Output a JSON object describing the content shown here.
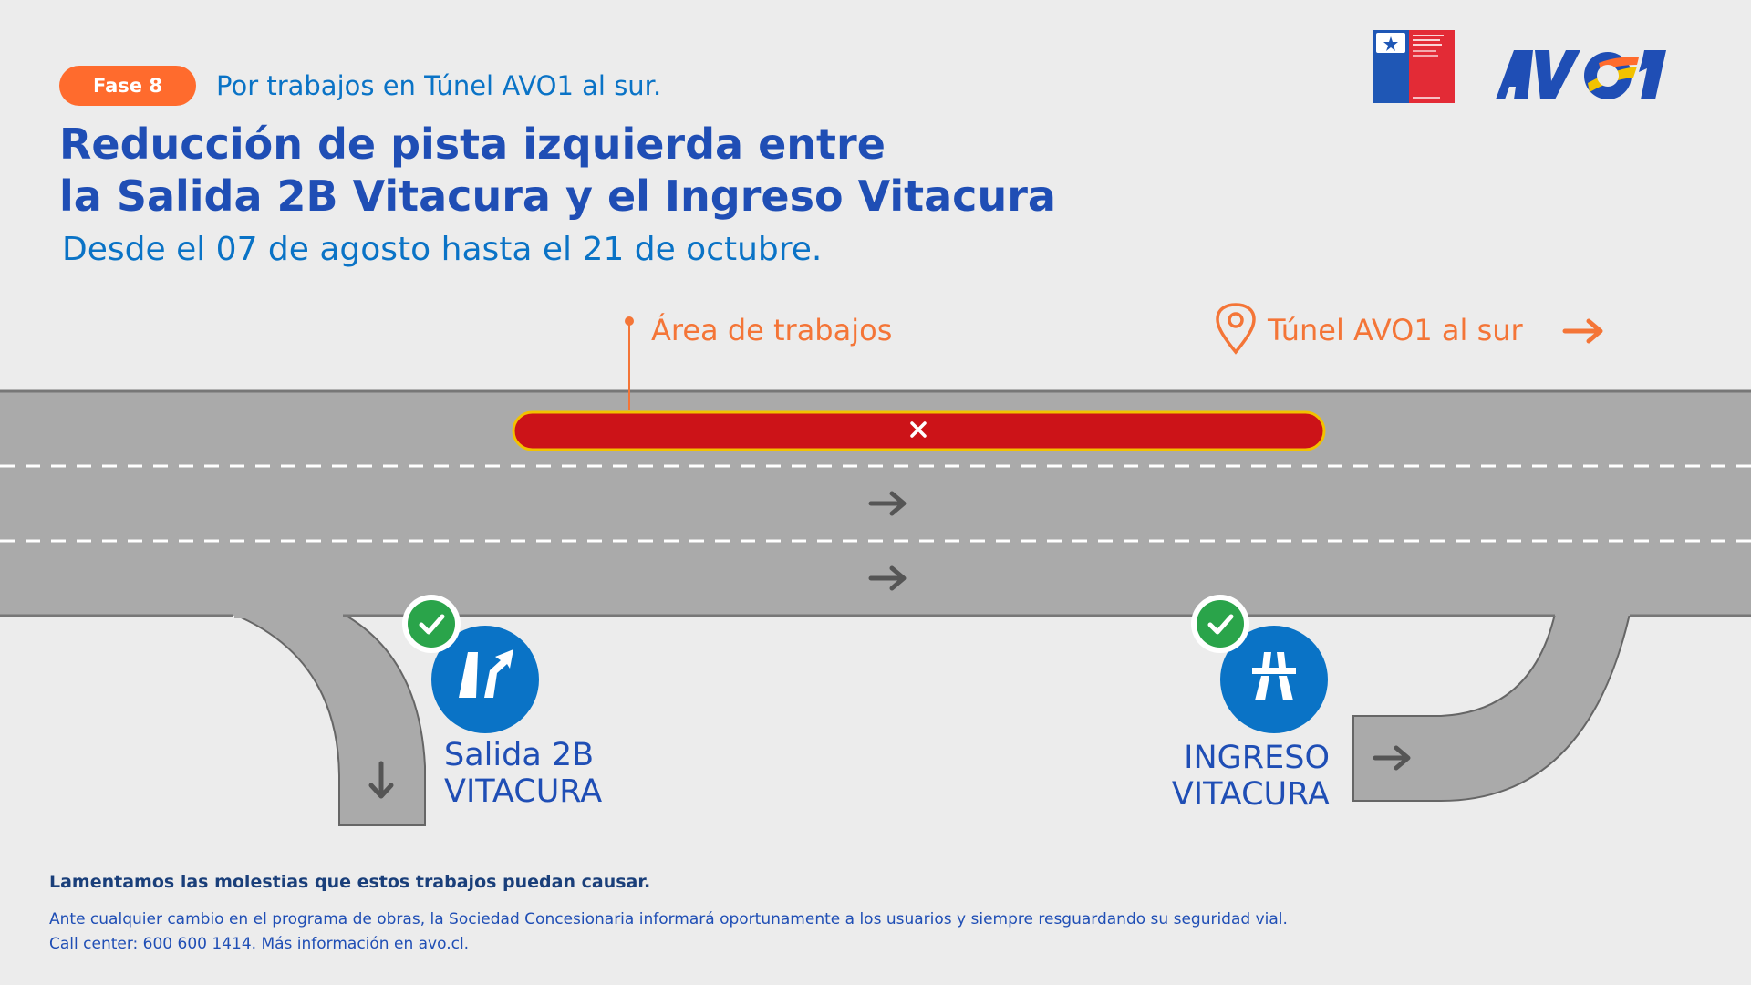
{
  "header": {
    "phase_badge": "Fase 8",
    "phase_note": "Por trabajos en Túnel AVO1 al sur.",
    "title_line1": "Reducción de pista izquierda entre",
    "title_line2": "la Salida 2B Vitacura y el Ingreso Vitacura",
    "dates": "Desde el 07 de agosto hasta el 21 de octubre."
  },
  "logos": {
    "gov_logo_text": "Dirección General de Concesiones · Ministerio de Obras Públicas · Gobierno de Chile",
    "brand_logo": "AVO1"
  },
  "diagram": {
    "works_label": "Área de trabajos",
    "tunnel_label": "Túnel AVO1 al sur",
    "exit_label_line1": "Salida 2B",
    "exit_label_line2": "VITACURA",
    "entry_label_line1": "INGRESO",
    "entry_label_line2": "VITACURA",
    "icons": [
      "location-pin-icon",
      "arrow-right-icon",
      "close-x-icon",
      "check-icon",
      "highway-exit-icon",
      "highway-entry-icon",
      "arrow-down-icon"
    ],
    "colors": {
      "road": "#aaaaaa",
      "closure": "#cc1318",
      "closure_border": "#f2c200",
      "accent_orange": "#f47537",
      "status_ok": "#2aa44a",
      "sign_blue": "#0a73c6",
      "title_blue": "#1f4eb5"
    }
  },
  "footer": {
    "apology": "Lamentamos las molestias que estos trabajos puedan causar.",
    "info_line1": "Ante cualquier cambio en el programa de obras, la Sociedad Concesionaria informará oportunamente a los usuarios y siempre resguardando su seguridad vial.",
    "info_line2": "Call center: 600 600 1414. Más información en avo.cl."
  }
}
